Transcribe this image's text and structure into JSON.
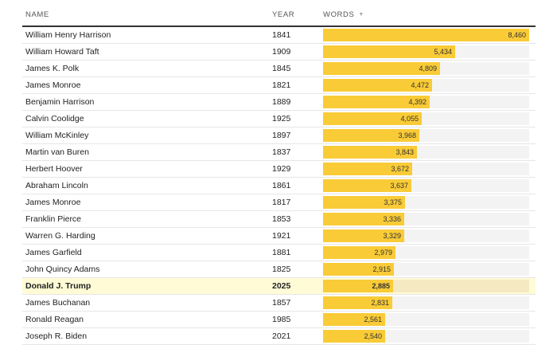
{
  "header": {
    "name": "NAME",
    "year": "YEAR",
    "words": "WORDS"
  },
  "max_words": 8460,
  "rows": [
    {
      "name": "William Henry Harrison",
      "year": "1841",
      "words": 8460,
      "label": "8,460",
      "highlight": false
    },
    {
      "name": "William Howard Taft",
      "year": "1909",
      "words": 5434,
      "label": "5,434",
      "highlight": false
    },
    {
      "name": "James K. Polk",
      "year": "1845",
      "words": 4809,
      "label": "4,809",
      "highlight": false
    },
    {
      "name": "James Monroe",
      "year": "1821",
      "words": 4472,
      "label": "4,472",
      "highlight": false
    },
    {
      "name": "Benjamin Harrison",
      "year": "1889",
      "words": 4392,
      "label": "4,392",
      "highlight": false
    },
    {
      "name": "Calvin Coolidge",
      "year": "1925",
      "words": 4055,
      "label": "4,055",
      "highlight": false
    },
    {
      "name": "William McKinley",
      "year": "1897",
      "words": 3968,
      "label": "3,968",
      "highlight": false
    },
    {
      "name": "Martin van Buren",
      "year": "1837",
      "words": 3843,
      "label": "3,843",
      "highlight": false
    },
    {
      "name": "Herbert Hoover",
      "year": "1929",
      "words": 3672,
      "label": "3,672",
      "highlight": false
    },
    {
      "name": "Abraham Lincoln",
      "year": "1861",
      "words": 3637,
      "label": "3,637",
      "highlight": false
    },
    {
      "name": "James Monroe",
      "year": "1817",
      "words": 3375,
      "label": "3,375",
      "highlight": false
    },
    {
      "name": "Franklin Pierce",
      "year": "1853",
      "words": 3336,
      "label": "3,336",
      "highlight": false
    },
    {
      "name": "Warren G. Harding",
      "year": "1921",
      "words": 3329,
      "label": "3,329",
      "highlight": false
    },
    {
      "name": "James Garfield",
      "year": "1881",
      "words": 2979,
      "label": "2,979",
      "highlight": false
    },
    {
      "name": "John Quincy Adams",
      "year": "1825",
      "words": 2915,
      "label": "2,915",
      "highlight": false
    },
    {
      "name": "Donald J. Trump",
      "year": "2025",
      "words": 2885,
      "label": "2,885",
      "highlight": true
    },
    {
      "name": "James Buchanan",
      "year": "1857",
      "words": 2831,
      "label": "2,831",
      "highlight": false
    },
    {
      "name": "Ronald Reagan",
      "year": "1985",
      "words": 2561,
      "label": "2,561",
      "highlight": false
    },
    {
      "name": "Joseph R. Biden",
      "year": "2021",
      "words": 2540,
      "label": "2,540",
      "highlight": false
    }
  ],
  "colors": {
    "bar": "#f9cb37",
    "track": "#f3f3f3",
    "highlight_row": "#fffbd6",
    "highlight_track": "#f5e9c2"
  },
  "icons": {
    "sort": "sort-descending-icon"
  }
}
